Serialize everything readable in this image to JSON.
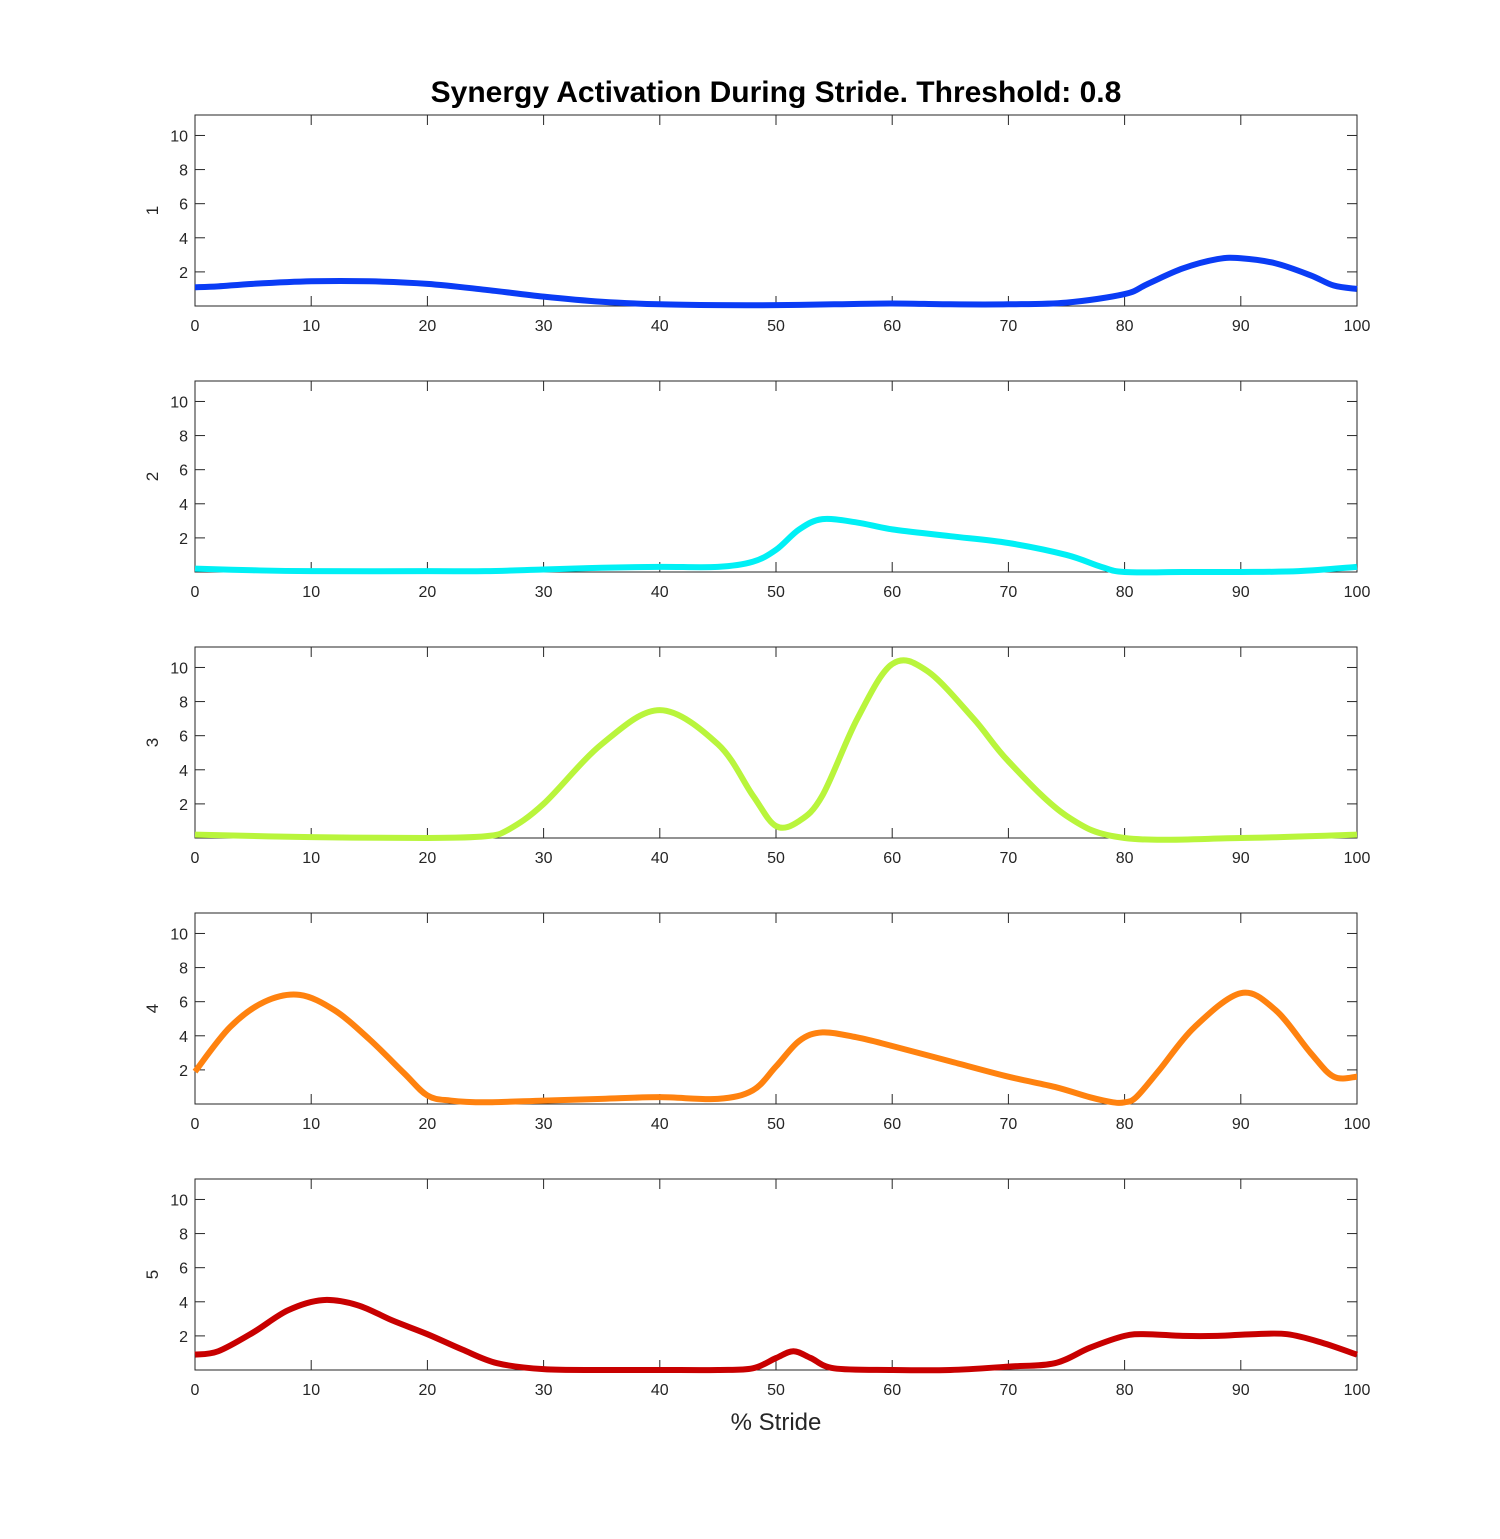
{
  "chart_data": {
    "type": "line",
    "title": "Synergy Activation During Stride. Threshold: 0.8",
    "xlabel": "% Stride",
    "xlim": [
      0,
      100
    ],
    "ylim": [
      0,
      11.2
    ],
    "xticks": [
      0,
      10,
      20,
      30,
      40,
      50,
      60,
      70,
      80,
      90,
      100
    ],
    "yticks": [
      2,
      4,
      6,
      8,
      10
    ],
    "grid": false,
    "panels": [
      {
        "ylabel": "1",
        "color": "#0a3cf5",
        "x": [
          0,
          2,
          5,
          10,
          15,
          20,
          25,
          30,
          35,
          40,
          45,
          50,
          55,
          60,
          65,
          70,
          75,
          80,
          82,
          85,
          88,
          90,
          93,
          96,
          98,
          100
        ],
        "y": [
          1.1,
          1.15,
          1.3,
          1.45,
          1.45,
          1.3,
          0.95,
          0.55,
          0.25,
          0.1,
          0.05,
          0.05,
          0.1,
          0.15,
          0.1,
          0.1,
          0.2,
          0.7,
          1.3,
          2.2,
          2.75,
          2.8,
          2.5,
          1.8,
          1.2,
          1.0
        ]
      },
      {
        "ylabel": "2",
        "color": "#00f0f5",
        "x": [
          0,
          5,
          10,
          20,
          25,
          30,
          35,
          40,
          45,
          48,
          50,
          52,
          54,
          57,
          60,
          65,
          70,
          75,
          78,
          80,
          85,
          90,
          95,
          100
        ],
        "y": [
          0.2,
          0.1,
          0.05,
          0.05,
          0.05,
          0.15,
          0.25,
          0.3,
          0.3,
          0.6,
          1.3,
          2.5,
          3.1,
          2.9,
          2.5,
          2.1,
          1.7,
          1.0,
          0.3,
          0.0,
          0.0,
          0.0,
          0.05,
          0.3
        ]
      },
      {
        "ylabel": "3",
        "color": "#b9f53c",
        "x": [
          0,
          10,
          20,
          25,
          27,
          30,
          35,
          40,
          45,
          48,
          50,
          52,
          54,
          57,
          60,
          63,
          67,
          70,
          75,
          80,
          90,
          100
        ],
        "y": [
          0.2,
          0.05,
          0.0,
          0.1,
          0.5,
          2.0,
          5.5,
          7.5,
          5.5,
          2.5,
          0.7,
          1.0,
          2.5,
          7.0,
          10.2,
          9.8,
          7.0,
          4.5,
          1.3,
          0.0,
          0.0,
          0.2
        ]
      },
      {
        "ylabel": "4",
        "color": "#ff820f",
        "x": [
          0,
          3,
          6,
          9,
          12,
          15,
          18,
          20,
          22,
          25,
          30,
          35,
          40,
          45,
          48,
          50,
          52,
          54,
          57,
          60,
          65,
          70,
          74,
          77,
          79,
          80,
          81,
          83,
          86,
          90,
          93,
          96,
          98,
          100
        ],
        "y": [
          1.9,
          4.5,
          6.0,
          6.4,
          5.5,
          3.8,
          1.8,
          0.5,
          0.2,
          0.1,
          0.2,
          0.3,
          0.4,
          0.3,
          0.8,
          2.2,
          3.7,
          4.2,
          3.9,
          3.4,
          2.5,
          1.6,
          1.0,
          0.4,
          0.1,
          0.1,
          0.4,
          2.0,
          4.5,
          6.5,
          5.5,
          3.0,
          1.6,
          1.6
        ]
      },
      {
        "ylabel": "5",
        "color": "#c80000",
        "x": [
          0,
          2,
          5,
          8,
          11,
          14,
          17,
          20,
          23,
          26,
          30,
          35,
          40,
          45,
          48,
          50,
          51.5,
          53,
          55,
          60,
          65,
          70,
          74,
          77,
          80,
          82,
          85,
          88,
          91,
          94,
          97,
          100
        ],
        "y": [
          0.9,
          1.1,
          2.2,
          3.5,
          4.1,
          3.8,
          2.9,
          2.1,
          1.2,
          0.4,
          0.05,
          0.0,
          0.0,
          0.0,
          0.1,
          0.7,
          1.1,
          0.7,
          0.1,
          0.0,
          0.0,
          0.2,
          0.4,
          1.3,
          2.0,
          2.1,
          2.0,
          2.0,
          2.1,
          2.1,
          1.6,
          0.9
        ]
      }
    ]
  }
}
